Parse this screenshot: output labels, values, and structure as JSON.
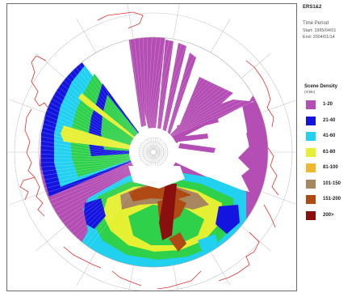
{
  "header": {
    "mission": "ERS1&2"
  },
  "period": {
    "title": "Time Period",
    "start_label": "Start:",
    "start_value": "1995/04/01",
    "end_label": "End:",
    "end_value": "2004/01/14"
  },
  "legend": {
    "title": "Scene Density",
    "unit": "(#/tile)",
    "items": [
      {
        "label": "1-20",
        "color": "#b44db4"
      },
      {
        "label": "21-40",
        "color": "#1414e0"
      },
      {
        "label": "41-60",
        "color": "#22d0f0"
      },
      {
        "label": "61-80",
        "color": "#e6f032"
      },
      {
        "label": "81-100",
        "color": "#f0b82a"
      },
      {
        "label": "101-150",
        "color": "#a88660"
      },
      {
        "label": "151-200",
        "color": "#b04a14"
      },
      {
        "label": "200>",
        "color": "#8a1010"
      }
    ]
  },
  "map": {
    "projection": "north-polar-stereographic",
    "graticule_color": "#c8c8c8",
    "coastline_color": "#e03030",
    "coverage_colors": {
      "low": "#b44db4",
      "blue": "#1414e0",
      "cyan": "#22d0f0",
      "green": "#2fd04a",
      "yellow": "#e6f032",
      "orange": "#f0b82a",
      "brown": "#a88660",
      "dark": "#8a1010"
    }
  }
}
